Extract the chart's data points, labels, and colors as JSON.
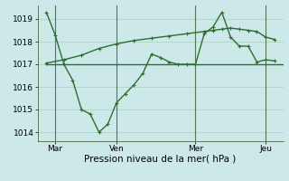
{
  "bg_color": "#cce8e8",
  "grid_color": "#b0d4c8",
  "line_color": "#2d6e2d",
  "xlabel": "Pression niveau de la mer( hPa )",
  "yticks": [
    1014,
    1015,
    1016,
    1017,
    1018,
    1019
  ],
  "ylim": [
    1013.6,
    1019.6
  ],
  "xlim": [
    0,
    14
  ],
  "xtick_positions": [
    1,
    4.5,
    9,
    13
  ],
  "xtick_labels": [
    "Mar",
    "Ven",
    "Mer",
    "Jeu"
  ],
  "vline_positions": [
    1,
    4.5,
    9,
    13
  ],
  "line1_x": [
    0.5,
    1,
    2,
    3,
    4.5,
    5,
    6,
    7,
    8,
    9,
    10,
    11,
    12,
    13,
    14
  ],
  "line1_y": [
    1017.0,
    1017.0,
    1017.0,
    1017.0,
    1017.0,
    1017.0,
    1017.0,
    1017.0,
    1017.0,
    1017.0,
    1017.0,
    1017.0,
    1017.0,
    1017.0,
    1017.0
  ],
  "line2_x": [
    0.5,
    1.5,
    2.5,
    3.5,
    4.5,
    5.5,
    6.5,
    7.5,
    8.5,
    9.5,
    10,
    10.5,
    11,
    11.5,
    12,
    12.5,
    13,
    13.5
  ],
  "line2_y": [
    1017.05,
    1017.2,
    1017.4,
    1017.7,
    1017.9,
    1018.05,
    1018.15,
    1018.25,
    1018.35,
    1018.45,
    1018.5,
    1018.55,
    1018.6,
    1018.55,
    1018.5,
    1018.45,
    1018.2,
    1018.1
  ],
  "line3_x": [
    0.5,
    1.0,
    1.5,
    2.0,
    2.5,
    3.0,
    3.5,
    4.0,
    4.5,
    5.0,
    5.5,
    6.0,
    6.5,
    7.0,
    7.5,
    8.0,
    8.5,
    9.0,
    9.5,
    10.0,
    10.5,
    11.0,
    11.5,
    12.0,
    12.5,
    13.0,
    13.5
  ],
  "line3_y": [
    1019.3,
    1018.3,
    1017.0,
    1016.3,
    1015.0,
    1014.8,
    1014.0,
    1014.35,
    1015.3,
    1015.7,
    1016.1,
    1016.6,
    1017.45,
    1017.3,
    1017.1,
    1017.0,
    1017.0,
    1017.0,
    1018.35,
    1018.65,
    1019.3,
    1018.2,
    1017.8,
    1017.8,
    1017.1,
    1017.2,
    1017.15
  ]
}
